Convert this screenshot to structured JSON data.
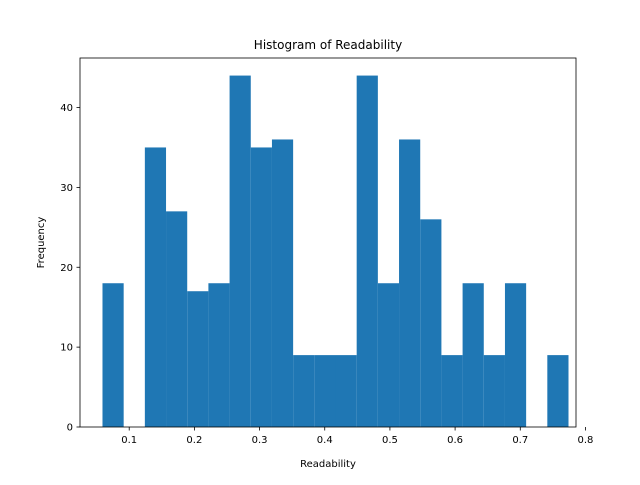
{
  "chart_data": {
    "type": "bar",
    "title": "Histogram of Readability",
    "xlabel": "Readability",
    "ylabel": "Frequency",
    "bar_color": "#1f77b4",
    "xlim": [
      0.0245,
      0.7855
    ],
    "ylim": [
      0,
      46.2
    ],
    "xticks": [
      0.1,
      0.2,
      0.3,
      0.4,
      0.5,
      0.6,
      0.7,
      0.8
    ],
    "xtick_labels": [
      "0.1",
      "0.2",
      "0.3",
      "0.4",
      "0.5",
      "0.6",
      "0.7",
      "0.8"
    ],
    "yticks": [
      0,
      10,
      20,
      30,
      40
    ],
    "ytick_labels": [
      "0",
      "10",
      "20",
      "30",
      "40"
    ],
    "bins": [
      {
        "x0": 0.059,
        "x1": 0.0915,
        "value": 18
      },
      {
        "x0": 0.0915,
        "x1": 0.124,
        "value": 0
      },
      {
        "x0": 0.124,
        "x1": 0.1565,
        "value": 35
      },
      {
        "x0": 0.1565,
        "x1": 0.189,
        "value": 27
      },
      {
        "x0": 0.189,
        "x1": 0.2215,
        "value": 17
      },
      {
        "x0": 0.2215,
        "x1": 0.254,
        "value": 18
      },
      {
        "x0": 0.254,
        "x1": 0.2865,
        "value": 44
      },
      {
        "x0": 0.2865,
        "x1": 0.319,
        "value": 35
      },
      {
        "x0": 0.319,
        "x1": 0.3515,
        "value": 36
      },
      {
        "x0": 0.3515,
        "x1": 0.384,
        "value": 9
      },
      {
        "x0": 0.384,
        "x1": 0.4165,
        "value": 9
      },
      {
        "x0": 0.4165,
        "x1": 0.449,
        "value": 9
      },
      {
        "x0": 0.449,
        "x1": 0.4815,
        "value": 44
      },
      {
        "x0": 0.4815,
        "x1": 0.514,
        "value": 18
      },
      {
        "x0": 0.514,
        "x1": 0.5465,
        "value": 36
      },
      {
        "x0": 0.5465,
        "x1": 0.579,
        "value": 26
      },
      {
        "x0": 0.579,
        "x1": 0.6115,
        "value": 9
      },
      {
        "x0": 0.6115,
        "x1": 0.644,
        "value": 18
      },
      {
        "x0": 0.644,
        "x1": 0.6765,
        "value": 9
      },
      {
        "x0": 0.6765,
        "x1": 0.709,
        "value": 18
      },
      {
        "x0": 0.709,
        "x1": 0.7415,
        "value": 0
      },
      {
        "x0": 0.7415,
        "x1": 0.774,
        "value": 9
      }
    ]
  }
}
